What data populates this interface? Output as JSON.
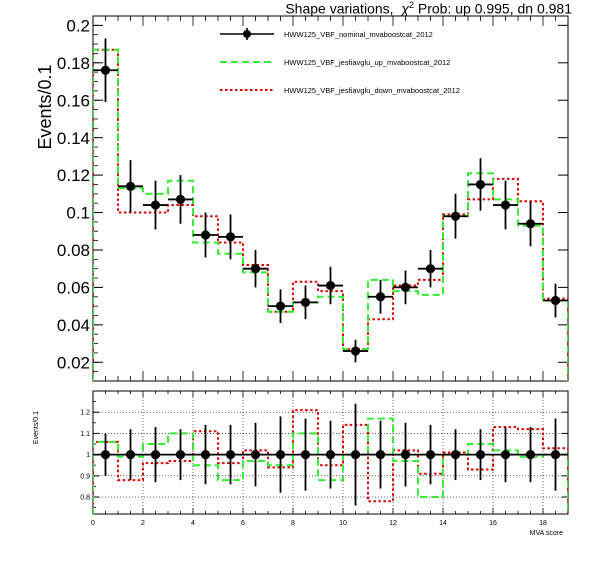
{
  "title": {
    "prefix": "Shape variations,",
    "chi": "χ",
    "sup": "2",
    "suffix": " Prob: up 0.995, dn 0.981"
  },
  "legend": [
    {
      "label": "HWW125_VBF_nominal_mvaboostcat_2012",
      "color": "#000000",
      "style": "marker"
    },
    {
      "label": "HWW125_VBF_jesfiavglu_up_mvaboostcat_2012",
      "color": "#33ee33",
      "style": "dashed"
    },
    {
      "label": "HWW125_VBF_jesfiavglu_down_mvaboostcat_2012",
      "color": "#dd0000",
      "style": "dotted"
    }
  ],
  "chart_data": [
    {
      "type": "line",
      "panel": "main",
      "ylabel": "Events/0.1",
      "xlim": [
        0,
        19
      ],
      "ylim": [
        0.01,
        0.205
      ],
      "yticks": [
        "0.02",
        "0.04",
        "0.06",
        "0.08",
        "0.1",
        "0.12",
        "0.14",
        "0.16",
        "0.18",
        "0.2"
      ],
      "bin_edges": [
        0,
        1,
        2,
        3,
        4,
        5,
        6,
        7,
        8,
        9,
        10,
        11,
        12,
        13,
        14,
        15,
        16,
        17,
        18,
        19
      ],
      "series": [
        {
          "name": "HWW125_VBF_nominal_mvaboostcat_2012",
          "values": [
            0.176,
            0.114,
            0.104,
            0.107,
            0.088,
            0.087,
            0.07,
            0.05,
            0.052,
            0.061,
            0.026,
            0.055,
            0.06,
            0.07,
            0.098,
            0.115,
            0.104,
            0.094,
            0.053
          ],
          "errors": [
            0.017,
            0.014,
            0.013,
            0.013,
            0.012,
            0.012,
            0.01,
            0.009,
            0.009,
            0.01,
            0.006,
            0.009,
            0.009,
            0.01,
            0.012,
            0.014,
            0.013,
            0.012,
            0.009
          ]
        },
        {
          "name": "HWW125_VBF_jesfiavglu_up_mvaboostcat_2012",
          "values": [
            0.187,
            0.113,
            0.11,
            0.117,
            0.084,
            0.078,
            0.068,
            0.047,
            0.052,
            0.055,
            0.027,
            0.064,
            0.058,
            0.056,
            0.098,
            0.121,
            0.107,
            0.093,
            0.053
          ]
        },
        {
          "name": "HWW125_VBF_jesfiavglu_down_mvaboostcat_2012",
          "values": [
            0.187,
            0.1,
            0.1,
            0.104,
            0.098,
            0.084,
            0.072,
            0.047,
            0.063,
            0.058,
            0.027,
            0.043,
            0.061,
            0.064,
            0.099,
            0.107,
            0.118,
            0.106,
            0.054
          ]
        }
      ]
    },
    {
      "type": "line",
      "panel": "ratio",
      "ylabel": "Events/0.1",
      "xlabel": "MVA score",
      "xlim": [
        0,
        19
      ],
      "ylim": [
        0.72,
        1.3
      ],
      "yticks": [
        "0.8",
        "0.9",
        "1",
        "1.1",
        "1.2"
      ],
      "xticks": [
        "0",
        "2",
        "4",
        "6",
        "8",
        "10",
        "12",
        "14",
        "16",
        "18"
      ],
      "grid": true,
      "bin_edges": [
        0,
        1,
        2,
        3,
        4,
        5,
        6,
        7,
        8,
        9,
        10,
        11,
        12,
        13,
        14,
        15,
        16,
        17,
        18,
        19
      ],
      "series": [
        {
          "name": "HWW125_VBF_nominal_mvaboostcat_2012",
          "values": [
            1,
            1,
            1,
            1,
            1,
            1,
            1,
            1,
            1,
            1,
            1,
            1,
            1,
            1,
            1,
            1,
            1,
            1,
            1
          ],
          "errors": [
            0.1,
            0.12,
            0.13,
            0.12,
            0.14,
            0.14,
            0.15,
            0.18,
            0.17,
            0.16,
            0.24,
            0.16,
            0.15,
            0.14,
            0.12,
            0.12,
            0.13,
            0.13,
            0.17
          ]
        },
        {
          "name": "HWW125_VBF_jesfiavglu_up_mvaboostcat_2012",
          "values": [
            1.06,
            0.99,
            1.05,
            1.1,
            0.95,
            0.88,
            0.97,
            0.95,
            1.1,
            0.88,
            1.0,
            1.17,
            0.97,
            0.8,
            1.0,
            1.05,
            1.02,
            0.99,
            1.0
          ]
        },
        {
          "name": "HWW125_VBF_jesfiavglu_down_mvaboostcat_2012",
          "values": [
            1.06,
            0.88,
            0.96,
            0.97,
            1.11,
            0.96,
            1.02,
            0.94,
            1.21,
            0.95,
            1.14,
            0.78,
            1.02,
            0.91,
            1.01,
            0.93,
            1.13,
            1.12,
            1.03
          ]
        }
      ]
    }
  ]
}
